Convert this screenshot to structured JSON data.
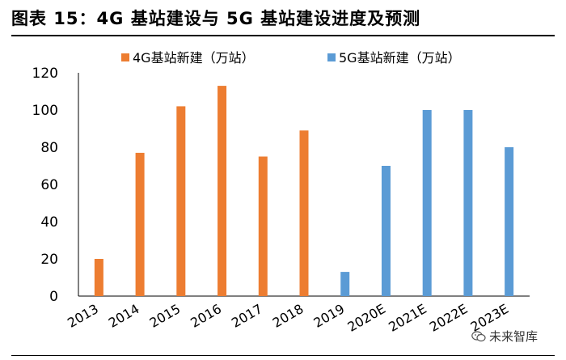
{
  "header": {
    "title": "图表 15：4G 基站建设与 5G 基站建设进度及预测"
  },
  "watermark": {
    "text": "未来智库",
    "icon": "wechat-icon"
  },
  "chart_data": {
    "type": "bar",
    "categories": [
      "2013",
      "2014",
      "2015",
      "2016",
      "2017",
      "2018",
      "2019",
      "2020E",
      "2021E",
      "2022E",
      "2023E"
    ],
    "series": [
      {
        "name": "4G基站新建（万站）",
        "color": "#ED7D31",
        "values": [
          20,
          77,
          102,
          113,
          75,
          89,
          null,
          null,
          null,
          null,
          null
        ]
      },
      {
        "name": "5G基站新建（万站）",
        "color": "#5B9BD5",
        "values": [
          null,
          null,
          null,
          null,
          null,
          null,
          13,
          70,
          100,
          100,
          80
        ]
      }
    ],
    "ylim": [
      0,
      120
    ],
    "yticks": [
      0,
      20,
      40,
      60,
      80,
      100,
      120
    ],
    "xlabel": "",
    "ylabel": "",
    "grid": false,
    "legend": "top"
  }
}
